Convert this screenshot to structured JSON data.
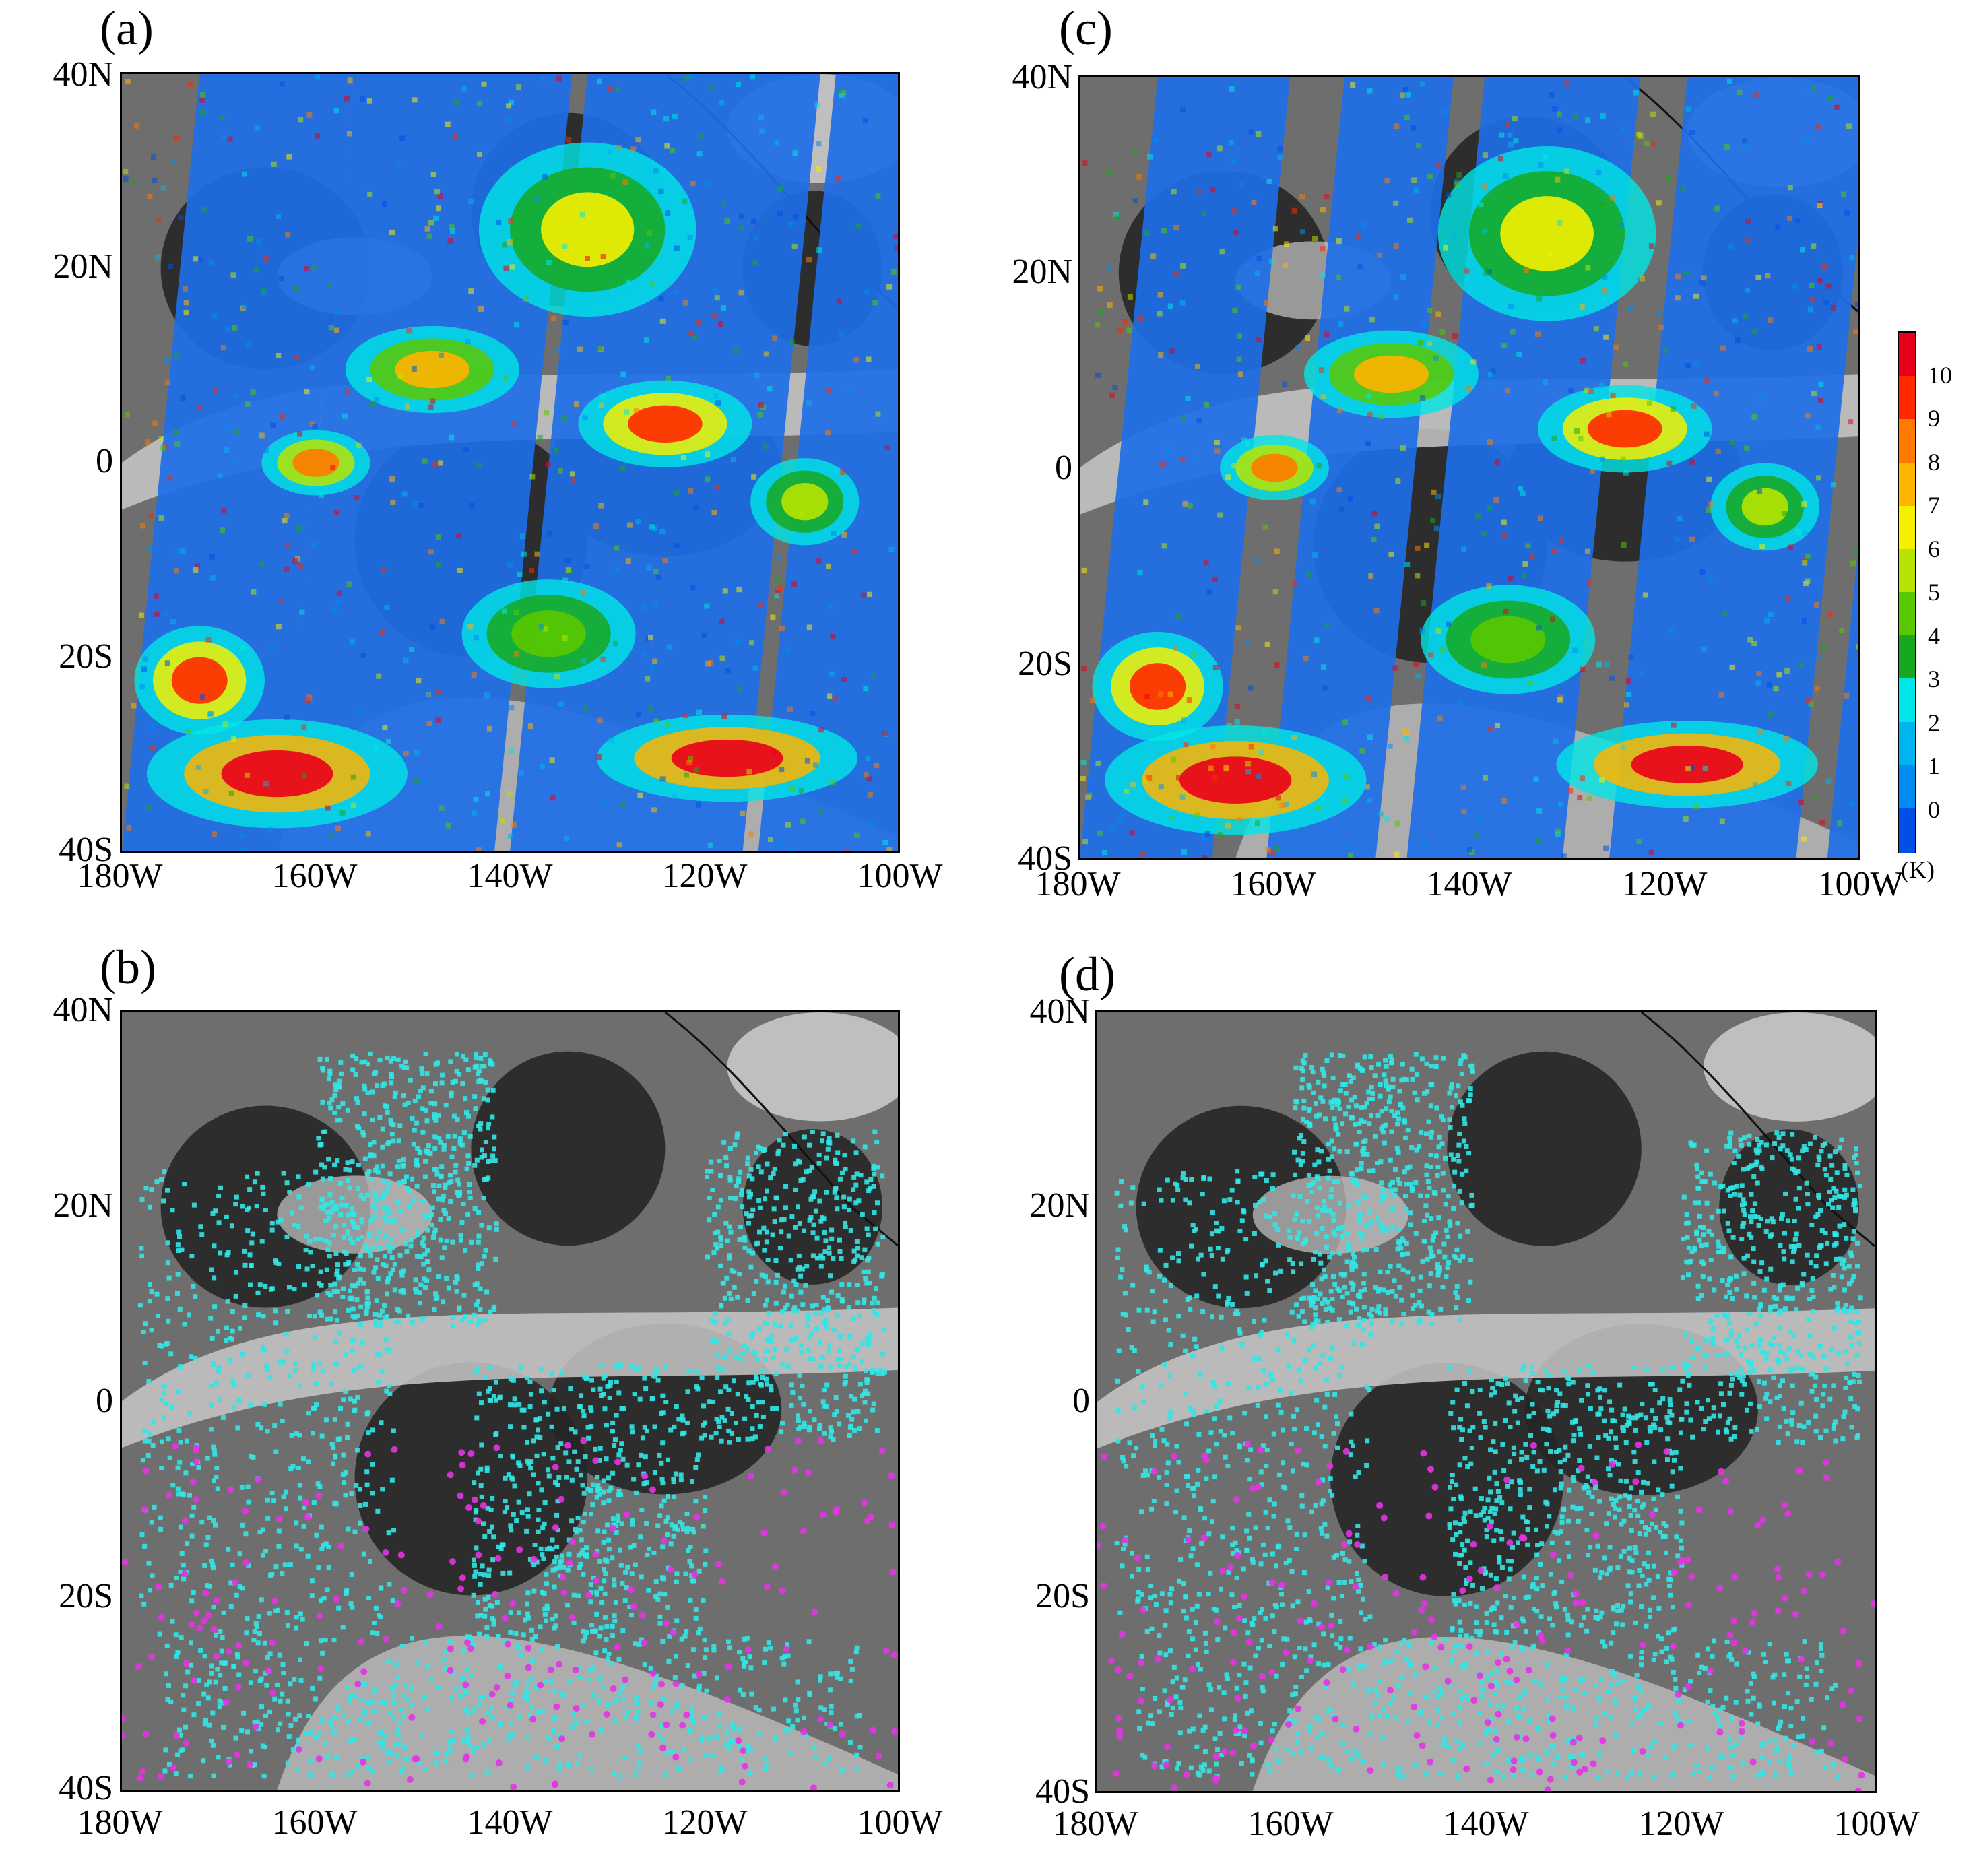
{
  "panels": [
    {
      "id": "a",
      "label": "(a)",
      "style": "color"
    },
    {
      "id": "b",
      "label": "(b)",
      "style": "qc"
    },
    {
      "id": "c",
      "label": "(c)",
      "style": "color"
    },
    {
      "id": "d",
      "label": "(d)",
      "style": "qc"
    }
  ],
  "lat_labels": [
    "40N",
    "20N",
    "0",
    "20S",
    "40S"
  ],
  "lon_labels": [
    "180W",
    "160W",
    "140W",
    "120W",
    "100W"
  ],
  "colorbar": {
    "unit": "(K)",
    "labels": [
      "10",
      "9",
      "8",
      "7",
      "6",
      "5",
      "4",
      "3",
      "2",
      "1",
      "0"
    ],
    "colors": [
      "#e8001a",
      "#ff2a00",
      "#ff7a00",
      "#ffb400",
      "#f5ef00",
      "#b6e400",
      "#58c800",
      "#18a81e",
      "#00e6e6",
      "#00b4f0",
      "#008cf0",
      "#0050e6"
    ]
  },
  "palette": {
    "clear_dark": "#262626",
    "gray_mid": "#6e6e6e",
    "cloud_light": "#c8c8c8",
    "qc_cyan": "#33e6e6",
    "qc_magenta": "#e633e6"
  }
}
